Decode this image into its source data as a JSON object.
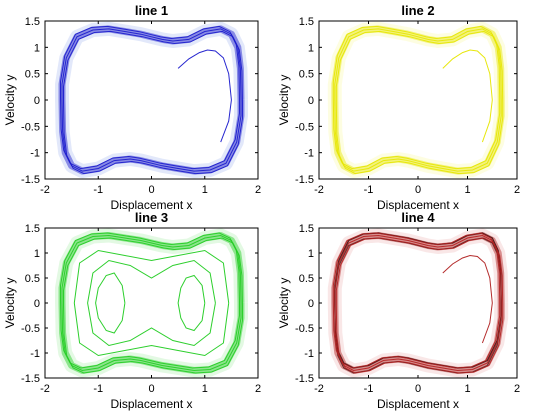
{
  "chart_data": [
    {
      "type": "line",
      "title": "line 1",
      "xlabel": "Displacement x",
      "ylabel": "Velocity y",
      "xlim": [
        -2,
        2
      ],
      "ylim": [
        -1.5,
        1.5
      ],
      "xticks": [
        "-2",
        "-1",
        "0",
        "1",
        "2"
      ],
      "yticks": [
        "1.5",
        "1",
        "0.5",
        "0",
        "-0.5",
        "-1",
        "-1.5"
      ],
      "grid": false,
      "series": [
        {
          "kind": "limit-cycle",
          "x": [
            1.68,
            1.67,
            1.62,
            1.5,
            1.3,
            1.0,
            0.7,
            0.4,
            0.2,
            0.0,
            -0.2,
            -0.5,
            -0.8,
            -1.1,
            -1.4,
            -1.6,
            -1.68,
            -1.68,
            -1.67,
            -1.62,
            -1.5,
            -1.3,
            -1.0,
            -0.7,
            -0.4,
            -0.2,
            0.0,
            0.2,
            0.5,
            0.8,
            1.1,
            1.4,
            1.6,
            1.68,
            1.68
          ],
          "y": [
            0.0,
            0.6,
            1.0,
            1.25,
            1.35,
            1.3,
            1.15,
            1.12,
            1.15,
            1.2,
            1.25,
            1.3,
            1.35,
            1.33,
            1.2,
            0.8,
            0.3,
            0.0,
            -0.6,
            -1.0,
            -1.25,
            -1.35,
            -1.3,
            -1.15,
            -1.12,
            -1.15,
            -1.2,
            -1.25,
            -1.3,
            -1.35,
            -1.33,
            -1.2,
            -0.8,
            -0.3,
            0.0
          ]
        },
        {
          "kind": "transient",
          "x": [
            0.5,
            0.7,
            0.9,
            1.05,
            1.2,
            1.35,
            1.45,
            1.5,
            1.45,
            1.3
          ],
          "y": [
            0.6,
            0.78,
            0.9,
            0.95,
            0.93,
            0.8,
            0.5,
            0.0,
            -0.4,
            -0.8
          ]
        }
      ],
      "colors": {
        "line": "#1a1acc",
        "halo": "#5f7fe6"
      }
    },
    {
      "type": "line",
      "title": "line 2",
      "xlabel": "Displacement x",
      "ylabel": "Velocity y",
      "xlim": [
        -2,
        2
      ],
      "ylim": [
        -1.5,
        1.5
      ],
      "xticks": [
        "-2",
        "-1",
        "0",
        "1",
        "2"
      ],
      "yticks": [
        "1.5",
        "1",
        "0.5",
        "0",
        "-0.5",
        "-1",
        "-1.5"
      ],
      "grid": false,
      "series": [
        {
          "kind": "limit-cycle",
          "x": [
            1.68,
            1.67,
            1.62,
            1.5,
            1.3,
            1.0,
            0.7,
            0.4,
            0.2,
            0.0,
            -0.2,
            -0.5,
            -0.8,
            -1.1,
            -1.4,
            -1.6,
            -1.68,
            -1.68,
            -1.67,
            -1.62,
            -1.5,
            -1.3,
            -1.0,
            -0.7,
            -0.4,
            -0.2,
            0.0,
            0.2,
            0.5,
            0.8,
            1.1,
            1.4,
            1.6,
            1.68,
            1.68
          ],
          "y": [
            0.0,
            0.6,
            1.0,
            1.25,
            1.35,
            1.3,
            1.15,
            1.12,
            1.15,
            1.2,
            1.25,
            1.3,
            1.35,
            1.33,
            1.2,
            0.8,
            0.3,
            0.0,
            -0.6,
            -1.0,
            -1.25,
            -1.35,
            -1.3,
            -1.15,
            -1.12,
            -1.15,
            -1.2,
            -1.25,
            -1.3,
            -1.35,
            -1.33,
            -1.2,
            -0.8,
            -0.3,
            0.0
          ]
        },
        {
          "kind": "transient",
          "x": [
            0.5,
            0.7,
            0.9,
            1.05,
            1.2,
            1.35,
            1.45,
            1.5,
            1.45,
            1.3
          ],
          "y": [
            0.6,
            0.78,
            0.9,
            0.95,
            0.93,
            0.8,
            0.5,
            0.0,
            -0.4,
            -0.8
          ]
        }
      ],
      "colors": {
        "line": "#e6e600",
        "halo": "#f2f25a"
      }
    },
    {
      "type": "line",
      "title": "line 3",
      "xlabel": "Displacement x",
      "ylabel": "Velocity y",
      "xlim": [
        -2,
        2
      ],
      "ylim": [
        -1.5,
        1.5
      ],
      "xticks": [
        "-2",
        "-1",
        "0",
        "1",
        "2"
      ],
      "yticks": [
        "1.5",
        "1",
        "0.5",
        "0",
        "-0.5",
        "-1",
        "-1.5"
      ],
      "grid": false,
      "series": [
        {
          "kind": "limit-cycle",
          "x": [
            1.68,
            1.67,
            1.62,
            1.5,
            1.3,
            1.0,
            0.7,
            0.4,
            0.2,
            0.0,
            -0.2,
            -0.5,
            -0.8,
            -1.1,
            -1.4,
            -1.6,
            -1.68,
            -1.68,
            -1.67,
            -1.62,
            -1.5,
            -1.3,
            -1.0,
            -0.7,
            -0.4,
            -0.2,
            0.0,
            0.2,
            0.5,
            0.8,
            1.1,
            1.4,
            1.6,
            1.68,
            1.68
          ],
          "y": [
            0.0,
            0.6,
            1.0,
            1.25,
            1.35,
            1.3,
            1.15,
            1.12,
            1.15,
            1.2,
            1.25,
            1.3,
            1.35,
            1.33,
            1.2,
            0.8,
            0.3,
            0.0,
            -0.6,
            -1.0,
            -1.25,
            -1.35,
            -1.3,
            -1.15,
            -1.12,
            -1.15,
            -1.2,
            -1.25,
            -1.3,
            -1.35,
            -1.33,
            -1.2,
            -0.8,
            -0.3,
            0.0
          ]
        },
        {
          "kind": "inner-loop",
          "x": [
            -0.5,
            -0.55,
            -0.7,
            -0.85,
            -1.0,
            -1.05,
            -1.0,
            -0.85,
            -0.7,
            -0.55,
            -0.5
          ],
          "y": [
            0.0,
            0.35,
            0.6,
            0.55,
            0.3,
            0.0,
            -0.3,
            -0.55,
            -0.6,
            -0.35,
            0.0
          ]
        },
        {
          "kind": "inner-loop",
          "x": [
            1.0,
            0.95,
            0.8,
            0.65,
            0.55,
            0.5,
            0.55,
            0.65,
            0.8,
            0.95,
            1.0
          ],
          "y": [
            0.0,
            0.35,
            0.55,
            0.5,
            0.3,
            0.0,
            -0.3,
            -0.5,
            -0.55,
            -0.35,
            0.0
          ]
        },
        {
          "kind": "inner-loop",
          "x": [
            1.2,
            1.1,
            0.8,
            0.4,
            0.0,
            -0.4,
            -0.8,
            -1.1,
            -1.2,
            -1.1,
            -0.8,
            -0.4,
            0.0,
            0.4,
            0.8,
            1.1,
            1.2
          ],
          "y": [
            0.0,
            0.6,
            0.85,
            0.75,
            0.5,
            0.75,
            0.85,
            0.6,
            0.0,
            -0.6,
            -0.85,
            -0.75,
            -0.5,
            -0.75,
            -0.85,
            -0.6,
            0.0
          ]
        },
        {
          "kind": "inner-loop",
          "x": [
            1.45,
            1.35,
            1.0,
            0.5,
            0.0,
            -0.5,
            -1.0,
            -1.35,
            -1.45,
            -1.35,
            -1.0,
            -0.5,
            0.0,
            0.5,
            1.0,
            1.35,
            1.45
          ],
          "y": [
            0.0,
            0.8,
            1.05,
            0.95,
            0.85,
            0.95,
            1.05,
            0.8,
            0.0,
            -0.8,
            -1.05,
            -0.95,
            -0.85,
            -0.95,
            -1.05,
            -0.8,
            0.0
          ]
        }
      ],
      "colors": {
        "line": "#22cc22",
        "halo": "#66e066"
      }
    },
    {
      "type": "line",
      "title": "line 4",
      "xlabel": "Displacement x",
      "ylabel": "Velocity y",
      "xlim": [
        -2,
        2
      ],
      "ylim": [
        -1.5,
        1.5
      ],
      "xticks": [
        "-2",
        "-1",
        "0",
        "1",
        "2"
      ],
      "yticks": [
        "1.5",
        "1",
        "0.5",
        "0",
        "-0.5",
        "-1",
        "-1.5"
      ],
      "grid": false,
      "series": [
        {
          "kind": "limit-cycle",
          "x": [
            1.68,
            1.67,
            1.62,
            1.5,
            1.3,
            1.0,
            0.7,
            0.4,
            0.2,
            0.0,
            -0.2,
            -0.5,
            -0.8,
            -1.1,
            -1.4,
            -1.6,
            -1.68,
            -1.68,
            -1.67,
            -1.62,
            -1.5,
            -1.3,
            -1.0,
            -0.7,
            -0.4,
            -0.2,
            0.0,
            0.2,
            0.5,
            0.8,
            1.1,
            1.4,
            1.6,
            1.68,
            1.68
          ],
          "y": [
            0.0,
            0.6,
            1.0,
            1.25,
            1.35,
            1.3,
            1.15,
            1.12,
            1.15,
            1.2,
            1.25,
            1.3,
            1.35,
            1.33,
            1.2,
            0.8,
            0.3,
            0.0,
            -0.6,
            -1.0,
            -1.25,
            -1.35,
            -1.3,
            -1.15,
            -1.12,
            -1.15,
            -1.2,
            -1.25,
            -1.3,
            -1.35,
            -1.33,
            -1.2,
            -0.8,
            -0.3,
            0.0
          ]
        },
        {
          "kind": "transient",
          "x": [
            0.5,
            0.7,
            0.9,
            1.05,
            1.2,
            1.35,
            1.45,
            1.5,
            1.45,
            1.3
          ],
          "y": [
            0.6,
            0.78,
            0.9,
            0.95,
            0.93,
            0.8,
            0.5,
            0.0,
            -0.4,
            -0.8
          ]
        }
      ],
      "colors": {
        "line": "#b02020",
        "halo": "#e07878",
        "edge": "#300000"
      }
    }
  ]
}
